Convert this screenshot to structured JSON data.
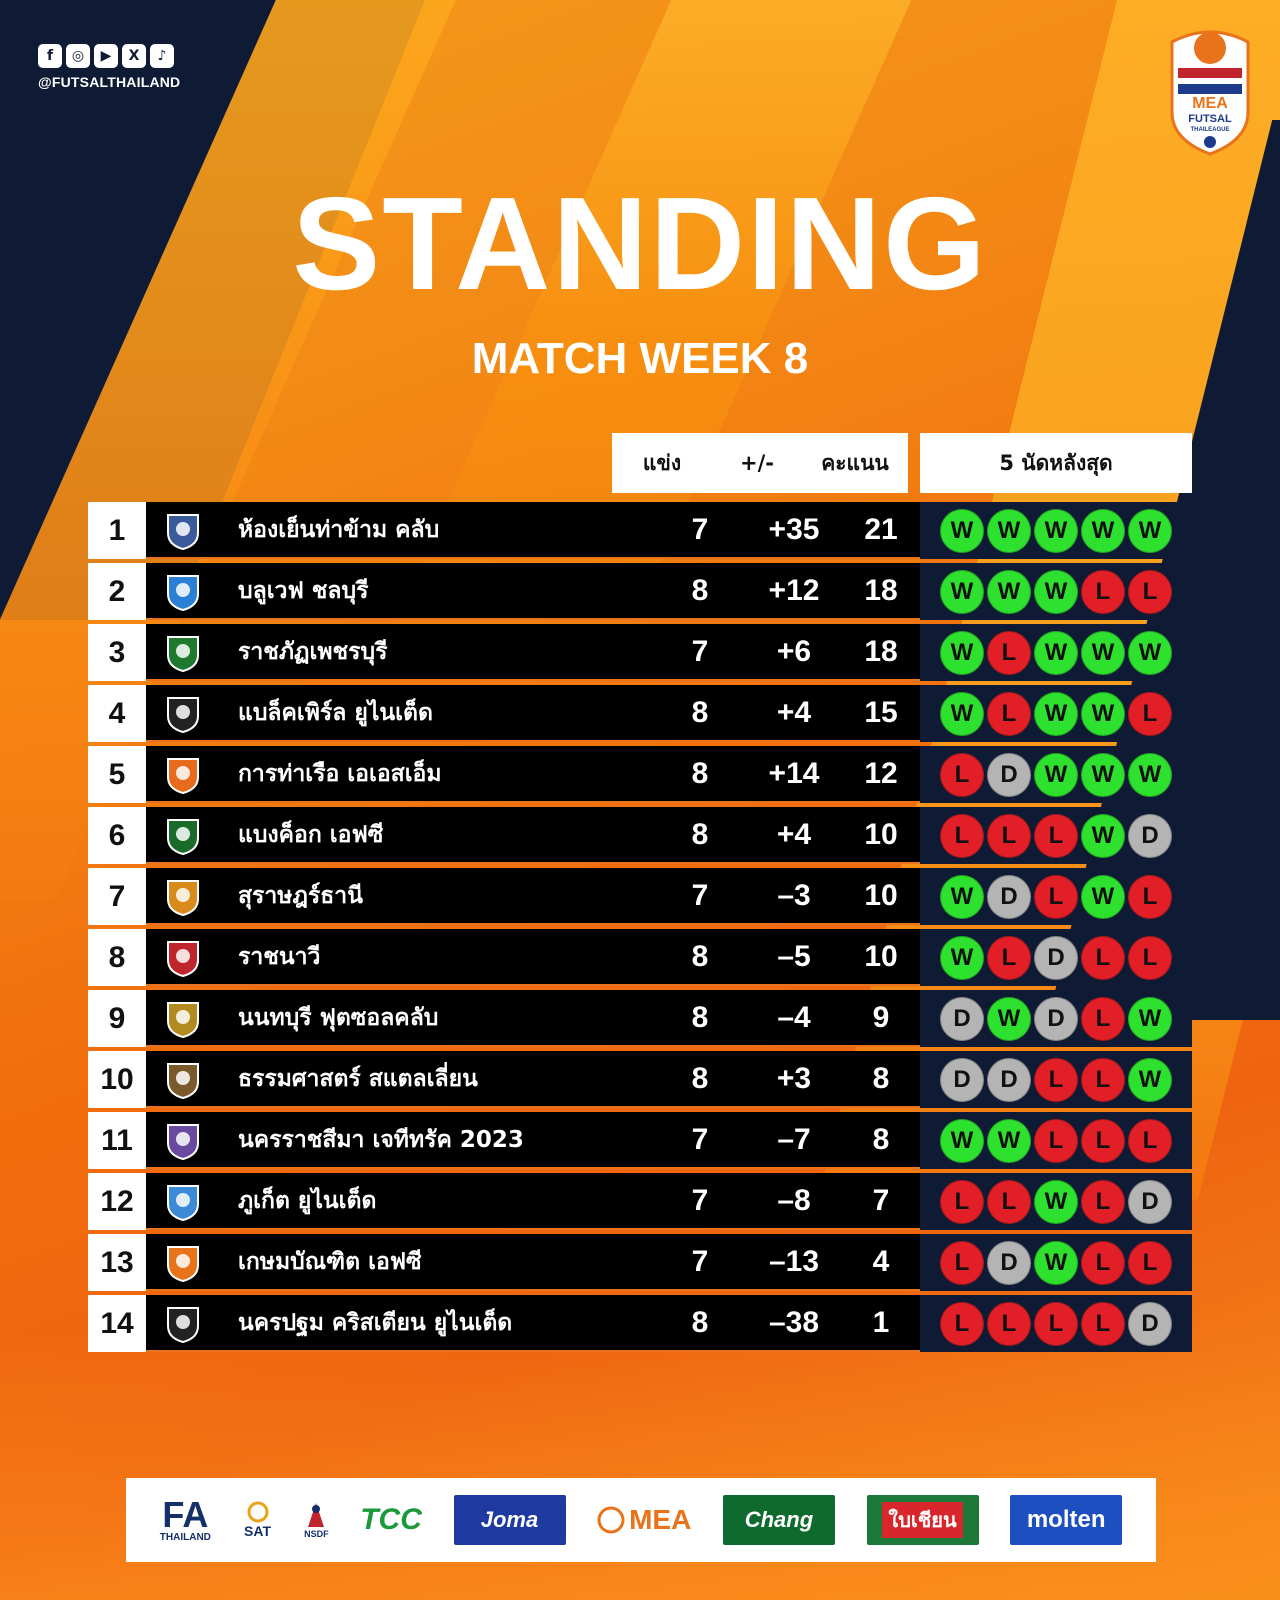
{
  "social": {
    "icons": [
      "f",
      "◎",
      "▶",
      "X",
      "♪"
    ],
    "handle": "@FUTSALTHAILAND"
  },
  "league_logo": {
    "text_top": "MEA",
    "text_mid": "FUTSAL",
    "text_bottom": "THAILEAGUE"
  },
  "title": "STANDING",
  "subtitle": "MATCH WEEK 8",
  "headers": {
    "played": "แข่ง",
    "goal_diff": "+/-",
    "points": "คะแนน",
    "form": "5 นัดหลังสุด"
  },
  "colors": {
    "win": "#2ee12e",
    "loss": "#e21f26",
    "draw": "#b4b4b4",
    "navy": "#0f1b35",
    "orange": "#f07a12"
  },
  "standings": [
    {
      "pos": "1",
      "team": "ห้องเย็นท่าข้าม คลับ",
      "played": "7",
      "gd": "+35",
      "pts": "21",
      "form": [
        "W",
        "W",
        "W",
        "W",
        "W"
      ]
    },
    {
      "pos": "2",
      "team": "บลูเวฟ ชลบุรี",
      "played": "8",
      "gd": "+12",
      "pts": "18",
      "form": [
        "W",
        "W",
        "W",
        "L",
        "L"
      ]
    },
    {
      "pos": "3",
      "team": "ราชภัฏเพชรบุรี",
      "played": "7",
      "gd": "+6",
      "pts": "18",
      "form": [
        "W",
        "L",
        "W",
        "W",
        "W"
      ]
    },
    {
      "pos": "4",
      "team": "แบล็คเพิร์ล ยูไนเต็ด",
      "played": "8",
      "gd": "+4",
      "pts": "15",
      "form": [
        "W",
        "L",
        "W",
        "W",
        "L"
      ]
    },
    {
      "pos": "5",
      "team": "การท่าเรือ เอเอสเอ็ม",
      "played": "8",
      "gd": "+14",
      "pts": "12",
      "form": [
        "L",
        "D",
        "W",
        "W",
        "W"
      ]
    },
    {
      "pos": "6",
      "team": "แบงค็อก เอฟซี",
      "played": "8",
      "gd": "+4",
      "pts": "10",
      "form": [
        "L",
        "L",
        "L",
        "W",
        "D"
      ]
    },
    {
      "pos": "7",
      "team": "สุราษฎร์ธานี",
      "played": "7",
      "gd": "–3",
      "pts": "10",
      "form": [
        "W",
        "D",
        "L",
        "W",
        "L"
      ]
    },
    {
      "pos": "8",
      "team": "ราชนาวี",
      "played": "8",
      "gd": "–5",
      "pts": "10",
      "form": [
        "W",
        "L",
        "D",
        "L",
        "L"
      ]
    },
    {
      "pos": "9",
      "team": "นนทบุรี ฟุตซอลคลับ",
      "played": "8",
      "gd": "–4",
      "pts": "9",
      "form": [
        "D",
        "W",
        "D",
        "L",
        "W"
      ]
    },
    {
      "pos": "10",
      "team": "ธรรมศาสตร์ สแตลเลี่ยน",
      "played": "8",
      "gd": "+3",
      "pts": "8",
      "form": [
        "D",
        "D",
        "L",
        "L",
        "W"
      ]
    },
    {
      "pos": "11",
      "team": "นครราชสีมา เจทีทรัค 2023",
      "played": "7",
      "gd": "–7",
      "pts": "8",
      "form": [
        "W",
        "W",
        "L",
        "L",
        "L"
      ]
    },
    {
      "pos": "12",
      "team": "ภูเก็ต ยูไนเต็ด",
      "played": "7",
      "gd": "–8",
      "pts": "7",
      "form": [
        "L",
        "L",
        "W",
        "L",
        "D"
      ]
    },
    {
      "pos": "13",
      "team": "เกษมบัณฑิต เอฟซี",
      "played": "7",
      "gd": "–13",
      "pts": "4",
      "form": [
        "L",
        "D",
        "W",
        "L",
        "L"
      ]
    },
    {
      "pos": "14",
      "team": "นครปฐม คริสเตียน ยูไนเต็ด",
      "played": "8",
      "gd": "–38",
      "pts": "1",
      "form": [
        "L",
        "L",
        "L",
        "L",
        "D"
      ]
    }
  ],
  "crest_colors": [
    "#3a5a9a",
    "#2b7fd4",
    "#1e7a2e",
    "#222222",
    "#e86a1c",
    "#1a6a2a",
    "#d88a1a",
    "#c0252b",
    "#b38a20",
    "#7a5a2a",
    "#6a4aa0",
    "#3a8ad8",
    "#e8731a",
    "#222222"
  ],
  "sponsors": {
    "fa_big": "FA",
    "fa_small": "THAILAND",
    "sat": "SAT",
    "nsdf": "NSDF",
    "tcc": "TCC",
    "joma": "Joma",
    "mea": "MEA",
    "chang": "Chang",
    "bai": "ใบเชียน",
    "molten": "molten"
  }
}
